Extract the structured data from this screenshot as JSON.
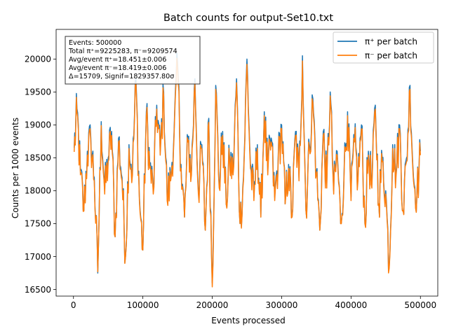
{
  "chart_data": {
    "type": "line",
    "title": "Batch counts for output-Set10.txt",
    "xlabel": "Events processed",
    "ylabel": "Counts per 1000 events",
    "xlim": [
      -25000,
      525000
    ],
    "ylim": [
      16400,
      20450
    ],
    "xticks": [
      0,
      100000,
      200000,
      300000,
      400000,
      500000
    ],
    "xtick_labels": [
      "0",
      "100000",
      "200000",
      "300000",
      "400000",
      "500000"
    ],
    "yticks": [
      16500,
      17000,
      17500,
      18000,
      18500,
      19000,
      19500,
      20000
    ],
    "ytick_labels": [
      "16500",
      "17000",
      "17500",
      "18000",
      "18500",
      "19000",
      "19500",
      "20000"
    ],
    "grid": false,
    "legend_position": "top-right",
    "annotation": {
      "lines": [
        "Events: 500000",
        "Total π⁺=9225283, π⁻=9209574",
        "Avg/event π⁺=18.451±0.006",
        "Avg/event π⁻=18.419±0.006",
        "Δ=15709, Signif=1829357.80σ"
      ]
    },
    "batch_size": 1000,
    "series": [
      {
        "name": "π⁺ per batch",
        "color": "#1f77b4",
        "anchors_x": [
          1000,
          5000,
          10000,
          15000,
          20000,
          25000,
          30000,
          35000,
          40000,
          45000,
          50000,
          55000,
          60000,
          65000,
          70000,
          75000,
          80000,
          85000,
          90000,
          95000,
          100000,
          105000,
          110000,
          115000,
          120000,
          125000,
          130000,
          135000,
          140000,
          145000,
          150000,
          155000,
          160000,
          165000,
          170000,
          175000,
          180000,
          185000,
          190000,
          195000,
          200000,
          205000,
          210000,
          215000,
          220000,
          225000,
          230000,
          235000,
          240000,
          245000,
          250000,
          255000,
          260000,
          265000,
          270000,
          275000,
          280000,
          285000,
          290000,
          295000,
          300000,
          305000,
          310000,
          315000,
          320000,
          325000,
          330000,
          335000,
          340000,
          345000,
          350000,
          355000,
          360000,
          365000,
          370000,
          375000,
          380000,
          385000,
          390000,
          395000,
          400000,
          405000,
          410000,
          415000,
          420000,
          425000,
          430000,
          435000,
          440000,
          445000,
          450000,
          455000,
          460000,
          465000,
          470000,
          475000,
          480000,
          485000,
          490000,
          495000,
          500000
        ],
        "anchors_y": [
          18650,
          19250,
          18300,
          17700,
          18600,
          18800,
          18200,
          16750,
          19050,
          18000,
          18500,
          18900,
          17300,
          18800,
          18200,
          17000,
          18700,
          18300,
          19700,
          17900,
          17100,
          19200,
          18400,
          18000,
          19300,
          18600,
          19500,
          17900,
          18200,
          18900,
          19950,
          18400,
          17600,
          18800,
          18300,
          19700,
          18000,
          18700,
          17400,
          19100,
          16600,
          19600,
          18100,
          18900,
          17800,
          18500,
          18300,
          19700,
          17500,
          18200,
          20000,
          18400,
          17900,
          18700,
          17600,
          19200,
          18300,
          18800,
          17900,
          18500,
          19000,
          17800,
          18400,
          17600,
          18900,
          18200,
          20050,
          17700,
          18700,
          19400,
          18300,
          17400,
          18900,
          18100,
          19500,
          18000,
          18600,
          17500,
          18300,
          19200,
          17900,
          18800,
          18200,
          19000,
          17500,
          18600,
          18100,
          19300,
          17800,
          18500,
          18000,
          16850,
          18700,
          18300,
          19000,
          17700,
          18500,
          19600,
          18200,
          17950,
          18600
        ]
      },
      {
        "name": "π⁻ per batch",
        "color": "#ff7f0e",
        "anchors_x": [
          1000,
          5000,
          10000,
          15000,
          20000,
          25000,
          30000,
          35000,
          40000,
          45000,
          50000,
          55000,
          60000,
          65000,
          70000,
          75000,
          80000,
          85000,
          90000,
          95000,
          100000,
          105000,
          110000,
          115000,
          120000,
          125000,
          130000,
          135000,
          140000,
          145000,
          150000,
          155000,
          160000,
          165000,
          170000,
          175000,
          180000,
          185000,
          190000,
          195000,
          200000,
          205000,
          210000,
          215000,
          220000,
          225000,
          230000,
          235000,
          240000,
          245000,
          250000,
          255000,
          260000,
          265000,
          270000,
          275000,
          280000,
          285000,
          290000,
          295000,
          300000,
          305000,
          310000,
          315000,
          320000,
          325000,
          330000,
          335000,
          340000,
          345000,
          350000,
          355000,
          360000,
          365000,
          370000,
          375000,
          380000,
          385000,
          390000,
          395000,
          400000,
          405000,
          410000,
          415000,
          420000,
          425000,
          430000,
          435000,
          440000,
          445000,
          450000,
          455000,
          460000,
          465000,
          470000,
          475000,
          480000,
          485000,
          490000,
          495000,
          500000
        ],
        "anchors_y": [
          18620,
          19220,
          18270,
          17720,
          18570,
          18770,
          18180,
          16800,
          19020,
          17980,
          18470,
          18870,
          17330,
          18770,
          18180,
          17030,
          18670,
          18270,
          19670,
          17880,
          17130,
          19170,
          18370,
          17980,
          19270,
          18570,
          19470,
          17880,
          18180,
          18870,
          19900,
          18370,
          17630,
          18770,
          18270,
          19670,
          17980,
          18670,
          17430,
          19070,
          16570,
          19570,
          18070,
          18870,
          17830,
          18470,
          18270,
          19670,
          17530,
          18180,
          19950,
          18370,
          17880,
          18670,
          17630,
          19170,
          18270,
          18770,
          17880,
          18470,
          18970,
          17830,
          18370,
          17630,
          18870,
          18180,
          20000,
          17730,
          18670,
          19370,
          18270,
          17430,
          18870,
          18070,
          19470,
          17980,
          18570,
          17530,
          18270,
          19170,
          17880,
          18770,
          18180,
          18970,
          17530,
          18570,
          18070,
          19270,
          17830,
          18470,
          17980,
          16850,
          18670,
          18270,
          18970,
          17730,
          18470,
          19570,
          18180,
          17980,
          18570
        ]
      }
    ]
  }
}
